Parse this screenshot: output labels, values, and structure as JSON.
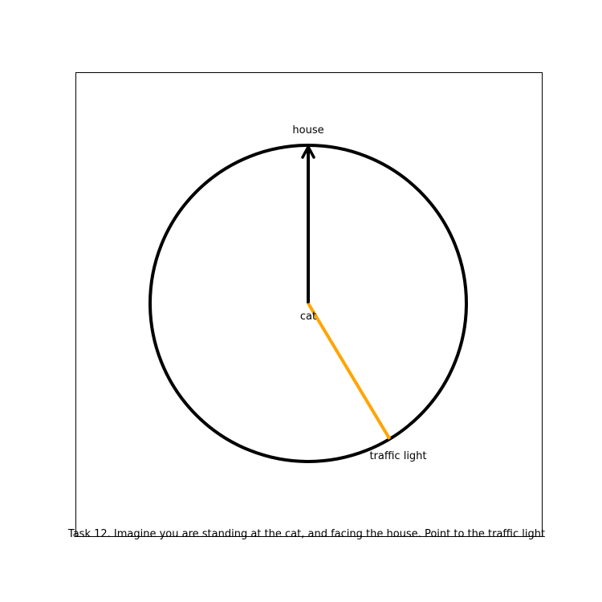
{
  "labels": {
    "top": "house",
    "center": "cat",
    "pointer": "traffic light"
  },
  "caption": "Task 12. Imagine you are standing at the cat, and facing the house. Point to the traffic light",
  "diagram": {
    "heading_direction_deg": 0,
    "pointer_angle_deg": 149,
    "colors": {
      "circle": "#000000",
      "heading_arrow": "#000000",
      "pointer_line": "#ffa500",
      "frame": "#000000"
    }
  }
}
